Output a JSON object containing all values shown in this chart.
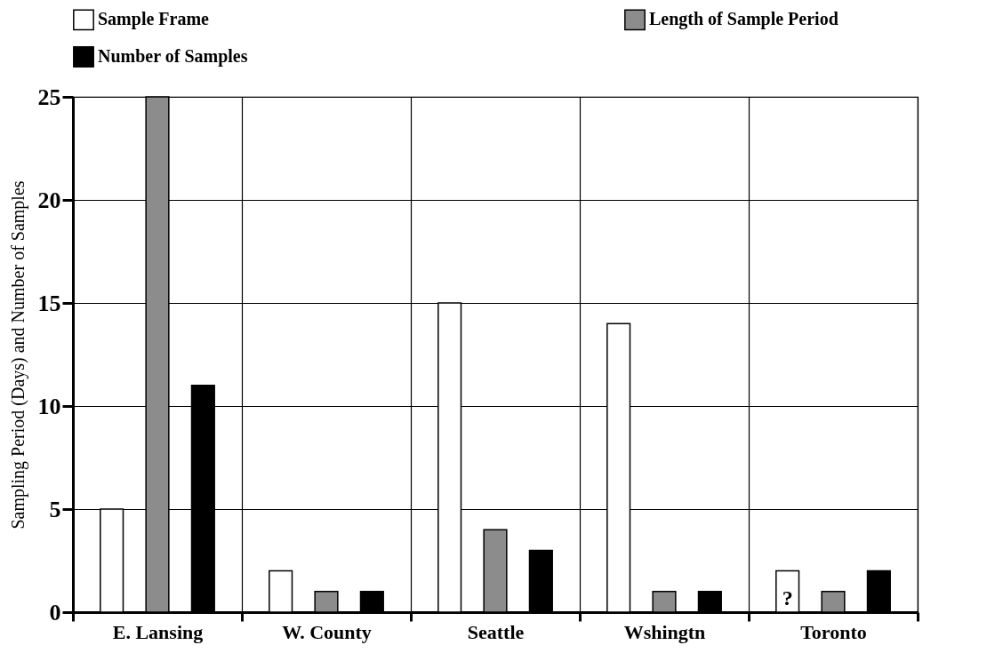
{
  "chart_data": {
    "type": "bar",
    "ylabel": "Sampling Period (Days) and Number of Samples",
    "categories": [
      "E. Lansing",
      "W. County",
      "Seattle",
      "Wshingtn",
      "Toronto"
    ],
    "series": [
      {
        "name": "Sample Frame",
        "color": "#ffffff",
        "values": [
          5,
          2,
          15,
          14,
          2
        ]
      },
      {
        "name": "Length of Sample Period",
        "color": "#8c8c8c",
        "values": [
          25,
          1,
          4,
          1,
          1
        ]
      },
      {
        "name": "Number of Samples",
        "color": "#000000",
        "values": [
          11,
          1,
          3,
          1,
          2
        ]
      }
    ],
    "ylim": [
      0,
      25
    ],
    "yticks": [
      0,
      5,
      10,
      15,
      20,
      25
    ],
    "grid": true,
    "legend": "top",
    "annotations": [
      "?"
    ]
  }
}
